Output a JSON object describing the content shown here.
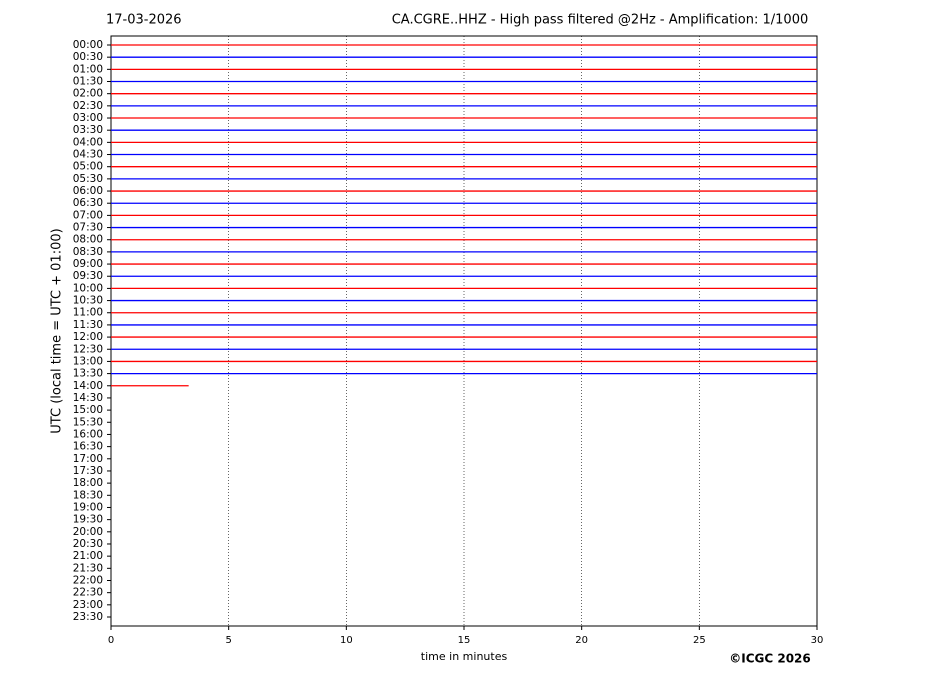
{
  "chart_data": {
    "type": "helicorder",
    "date": "17-03-2026",
    "title": "CA.CGRE..HHZ - High pass filtered @2Hz - Amplification: 1/1000",
    "ylabel": "UTC (local time = UTC + 01:00)",
    "xlabel": "time in minutes",
    "credit": "©ICGC 2026",
    "categories": [
      "00:00",
      "00:30",
      "01:00",
      "01:30",
      "02:00",
      "02:30",
      "03:00",
      "03:30",
      "04:00",
      "04:30",
      "05:00",
      "05:30",
      "06:00",
      "06:30",
      "07:00",
      "07:30",
      "08:00",
      "08:30",
      "09:00",
      "09:30",
      "10:00",
      "10:30",
      "11:00",
      "11:30",
      "12:00",
      "12:30",
      "13:00",
      "13:30",
      "14:00",
      "14:30",
      "15:00",
      "15:30",
      "16:00",
      "16:30",
      "17:00",
      "17:30",
      "18:00",
      "18:30",
      "19:00",
      "19:30",
      "20:00",
      "20:30",
      "21:00",
      "21:30",
      "22:00",
      "22:30",
      "23:00",
      "23:30"
    ],
    "values": [
      30,
      30,
      30,
      30,
      30,
      30,
      30,
      30,
      30,
      30,
      30,
      30,
      30,
      30,
      30,
      30,
      30,
      30,
      30,
      30,
      30,
      30,
      30,
      30,
      30,
      30,
      30,
      30,
      3.3,
      null,
      null,
      null,
      null,
      null,
      null,
      null,
      null,
      null,
      null,
      null,
      null,
      null,
      null,
      null,
      null,
      null,
      null,
      null
    ],
    "colors": [
      "#ff0000",
      "#0000ff"
    ],
    "xlim": [
      0,
      30
    ],
    "xticks": [
      0,
      5,
      10,
      15,
      20,
      25,
      30
    ],
    "grid": true
  }
}
